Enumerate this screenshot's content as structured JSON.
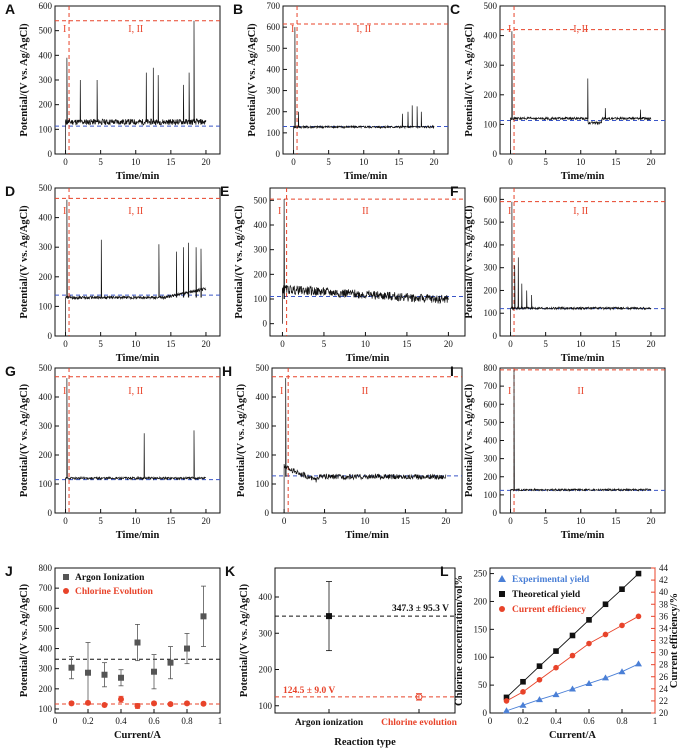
{
  "colors": {
    "red": "#e8432a",
    "blue": "#3a56c8",
    "black": "#111111",
    "gray": "#555555",
    "tri_blue": "#4a7fd6"
  },
  "chart_data": [
    {
      "label": "A",
      "type": "line",
      "xlabel": "Time/min",
      "ylabel": "Potential/(V vs. Ag/AgCl)",
      "xlim": [
        -1.5,
        22
      ],
      "ylim": [
        0,
        600
      ],
      "xticks": [
        0,
        5,
        10,
        15,
        20
      ],
      "yticks": [
        0,
        100,
        200,
        300,
        400,
        500,
        600
      ],
      "red_hline": 540,
      "blue_hline": 113,
      "baseline": 130,
      "noise": 12,
      "spikes": [
        [
          0.2,
          390
        ],
        [
          2.1,
          300
        ],
        [
          4.5,
          300
        ],
        [
          11.5,
          330
        ],
        [
          12.5,
          350
        ],
        [
          13.2,
          320
        ],
        [
          16.8,
          280
        ],
        [
          17.6,
          330
        ],
        [
          18.3,
          540
        ]
      ],
      "regions": [
        "I",
        "I, II"
      ]
    },
    {
      "label": "B",
      "type": "line",
      "xlabel": "Time/min",
      "ylabel": "Potential/(V vs. Ag/AgCl)",
      "xlim": [
        -1.5,
        22
      ],
      "ylim": [
        0,
        700
      ],
      "xticks": [
        0,
        5,
        10,
        15,
        20
      ],
      "yticks": [
        0,
        100,
        200,
        300,
        400,
        500,
        600,
        700
      ],
      "red_hline": 615,
      "blue_hline": 130,
      "baseline": 128,
      "noise": 5,
      "spikes": [
        [
          0.2,
          600
        ],
        [
          0.7,
          200
        ],
        [
          15.5,
          190
        ],
        [
          16.3,
          200
        ],
        [
          16.9,
          230
        ],
        [
          17.6,
          225
        ],
        [
          18.2,
          200
        ]
      ],
      "regions": [
        "I",
        "I, II"
      ]
    },
    {
      "label": "C",
      "type": "line",
      "xlabel": "Time/min",
      "ylabel": "Potential/(V vs. Ag/AgCl)",
      "xlim": [
        -1.5,
        22
      ],
      "ylim": [
        0,
        500
      ],
      "xticks": [
        0,
        5,
        10,
        15,
        20
      ],
      "yticks": [
        0,
        100,
        200,
        300,
        400,
        500
      ],
      "red_hline": 420,
      "blue_hline": 113,
      "baseline": 120,
      "noise": 4,
      "spikes": [
        [
          0.2,
          415
        ],
        [
          11,
          255
        ],
        [
          13.5,
          155
        ],
        [
          18.5,
          150
        ]
      ],
      "regions": [
        "I",
        "I, II"
      ]
    },
    {
      "label": "D",
      "type": "line",
      "xlabel": "Time/min",
      "ylabel": "Potential/(V vs. Ag/AgCl)",
      "xlim": [
        -1.5,
        22
      ],
      "ylim": [
        0,
        500
      ],
      "xticks": [
        0,
        5,
        10,
        15,
        20
      ],
      "yticks": [
        0,
        100,
        200,
        300,
        400,
        500
      ],
      "red_hline": 465,
      "blue_hline": 138,
      "baseline": 130,
      "noise": 5,
      "spikes": [
        [
          0.2,
          460
        ],
        [
          5.1,
          325
        ],
        [
          13.3,
          310
        ],
        [
          15.8,
          285
        ],
        [
          16.8,
          300
        ],
        [
          17.5,
          315
        ],
        [
          18.6,
          300
        ],
        [
          19.3,
          295
        ]
      ],
      "regions": [
        "I",
        "I, II"
      ]
    },
    {
      "label": "E",
      "type": "line",
      "xlabel": "Time/min",
      "ylabel": "Potential/(V vs. Ag/AgCl)",
      "xlim": [
        -1.5,
        22
      ],
      "ylim": [
        -50,
        550
      ],
      "xticks": [
        0,
        5,
        10,
        15,
        20
      ],
      "yticks": [
        0,
        100,
        200,
        300,
        400,
        500
      ],
      "red_hline": 505,
      "blue_hline": 110,
      "baseline": 100,
      "noise": 18,
      "spikes": [
        [
          0.2,
          505
        ]
      ],
      "regions": [
        "I",
        "II"
      ]
    },
    {
      "label": "F",
      "type": "line",
      "xlabel": "Time/min",
      "ylabel": "Potential/(V vs. Ag/AgCl)",
      "xlim": [
        -1.5,
        22
      ],
      "ylim": [
        0,
        650
      ],
      "xticks": [
        0,
        5,
        10,
        15,
        20
      ],
      "yticks": [
        0,
        100,
        200,
        300,
        400,
        500,
        600
      ],
      "red_hline": 590,
      "blue_hline": 120,
      "baseline": 122,
      "noise": 5,
      "spikes": [
        [
          0.2,
          590
        ],
        [
          0.6,
          310
        ],
        [
          1.1,
          345
        ],
        [
          1.6,
          230
        ],
        [
          2.3,
          200
        ],
        [
          3.0,
          180
        ]
      ],
      "regions": [
        "I",
        "I, II"
      ]
    },
    {
      "label": "G",
      "type": "line",
      "xlabel": "Time/min",
      "ylabel": "Potential/(V vs. Ag/AgCl)",
      "xlim": [
        -1.5,
        22
      ],
      "ylim": [
        0,
        500
      ],
      "xticks": [
        0,
        5,
        10,
        15,
        20
      ],
      "yticks": [
        0,
        100,
        200,
        300,
        400,
        500
      ],
      "red_hline": 470,
      "blue_hline": 115,
      "baseline": 120,
      "noise": 4,
      "spikes": [
        [
          0.2,
          465
        ],
        [
          11.2,
          275
        ],
        [
          18.3,
          285
        ]
      ],
      "regions": [
        "I",
        "I, II"
      ]
    },
    {
      "label": "H",
      "type": "line",
      "xlabel": "Time/min",
      "ylabel": "Potential/(V vs. Ag/AgCl)",
      "xlim": [
        -1.5,
        22
      ],
      "ylim": [
        0,
        500
      ],
      "xticks": [
        0,
        5,
        10,
        15,
        20
      ],
      "yticks": [
        0,
        100,
        200,
        300,
        400,
        500
      ],
      "red_hline": 470,
      "blue_hline": 128,
      "baseline": 125,
      "noise": 9,
      "spikes": [
        [
          0.2,
          465
        ]
      ],
      "regions": [
        "I",
        "II"
      ]
    },
    {
      "label": "I",
      "type": "line",
      "xlabel": "Time/min",
      "ylabel": "Potential/(V vs. Ag/AgCl)",
      "xlim": [
        -1.5,
        22
      ],
      "ylim": [
        0,
        800
      ],
      "xticks": [
        0,
        5,
        10,
        15,
        20
      ],
      "yticks": [
        0,
        100,
        200,
        300,
        400,
        500,
        600,
        700,
        800
      ],
      "red_hline": 790,
      "blue_hline": 125,
      "baseline": 128,
      "noise": 5,
      "spikes": [
        [
          0.5,
          790
        ]
      ],
      "regions": [
        "I",
        "II"
      ]
    },
    {
      "label": "J",
      "type": "scatter",
      "xlabel": "Current/A",
      "ylabel": "Potential/(V vs. Ag/AgCl)",
      "xlim": [
        0,
        1.0
      ],
      "ylim": [
        80,
        800
      ],
      "xticks": [
        0.0,
        0.2,
        0.4,
        0.6,
        0.8,
        1.0
      ],
      "yticks": [
        100,
        200,
        300,
        400,
        500,
        600,
        700,
        800
      ],
      "black_hline": 347,
      "red_hline": 125,
      "series": [
        {
          "name": "Argon Ionization",
          "x": [
            0.1,
            0.2,
            0.3,
            0.4,
            0.5,
            0.6,
            0.7,
            0.8,
            0.9
          ],
          "y": [
            305,
            280,
            270,
            255,
            430,
            285,
            330,
            400,
            560
          ],
          "err": [
            55,
            150,
            60,
            40,
            90,
            85,
            80,
            75,
            150
          ]
        },
        {
          "name": "Chlorine Evolution",
          "x": [
            0.1,
            0.2,
            0.3,
            0.4,
            0.5,
            0.6,
            0.7,
            0.8,
            0.9
          ],
          "y": [
            128,
            130,
            120,
            148,
            115,
            128,
            124,
            128,
            126
          ],
          "err": [
            8,
            8,
            5,
            15,
            12,
            8,
            6,
            8,
            6
          ]
        }
      ]
    },
    {
      "label": "K",
      "type": "scatter",
      "xlabel": "Reaction type",
      "ylabel": "Potential/(V vs. Ag/AgCl)",
      "categories": [
        "Argon ionization",
        "Chlorine evolution"
      ],
      "ylim": [
        80,
        480
      ],
      "yticks": [
        100,
        200,
        300,
        400
      ],
      "values": [
        347.3,
        124.5
      ],
      "errors": [
        95.3,
        9.0
      ],
      "annotations": [
        "347.3 ± 95.3 V",
        "124.5 ± 9.0 V"
      ]
    },
    {
      "label": "L",
      "type": "line",
      "xlabel": "Current/A",
      "ylabel": "Chlorine concentration/vol%",
      "y2label": "Current efficiency/%",
      "xlim": [
        0,
        1.0
      ],
      "ylim": [
        0,
        260
      ],
      "y2lim": [
        20,
        44
      ],
      "xticks": [
        0.0,
        0.2,
        0.4,
        0.6,
        0.8,
        1.0
      ],
      "yticks": [
        0,
        50,
        100,
        150,
        200,
        250
      ],
      "y2ticks": [
        20,
        22,
        24,
        26,
        28,
        30,
        32,
        34,
        36,
        38,
        40,
        42,
        44
      ],
      "series": [
        {
          "name": "Experimental yield",
          "axis": "left",
          "x": [
            0.1,
            0.2,
            0.3,
            0.4,
            0.5,
            0.6,
            0.7,
            0.8,
            0.9
          ],
          "y": [
            4,
            14,
            24,
            33,
            43,
            53,
            63,
            74,
            88
          ]
        },
        {
          "name": "Theoretical yield",
          "axis": "left",
          "x": [
            0.1,
            0.2,
            0.3,
            0.4,
            0.5,
            0.6,
            0.7,
            0.8,
            0.9
          ],
          "y": [
            28,
            56,
            84,
            111,
            139,
            167,
            195,
            222,
            250
          ]
        },
        {
          "name": "Current efficiency",
          "axis": "right",
          "x": [
            0.1,
            0.2,
            0.3,
            0.4,
            0.5,
            0.6,
            0.7,
            0.8,
            0.9
          ],
          "y": [
            22.0,
            23.5,
            25.5,
            27.5,
            29.5,
            31.5,
            33.0,
            34.5,
            36.0
          ]
        }
      ]
    }
  ]
}
